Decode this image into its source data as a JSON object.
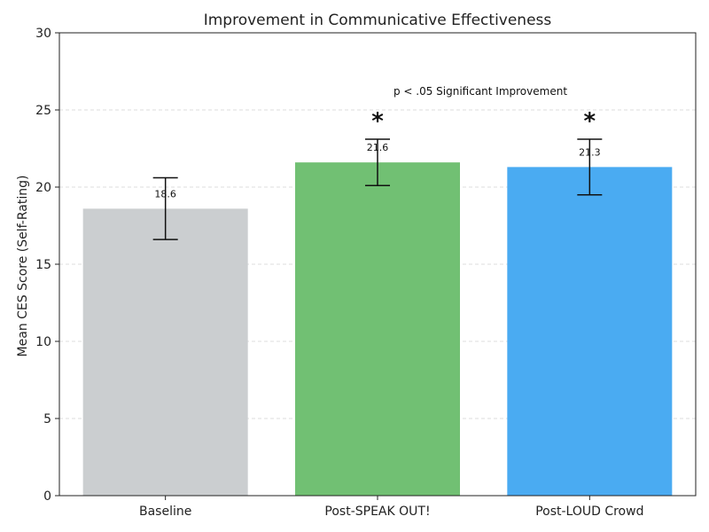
{
  "chart_data": {
    "type": "bar",
    "title": "Improvement in Communicative Effectiveness",
    "xlabel": "",
    "ylabel": "Mean CES Score (Self-Rating)",
    "ylim": [
      0,
      30
    ],
    "yticks": [
      0,
      5,
      10,
      15,
      20,
      25,
      30
    ],
    "grid": true,
    "categories": [
      "Baseline",
      "Post-SPEAK OUT!",
      "Post-LOUD Crowd"
    ],
    "values": [
      18.6,
      21.6,
      21.3
    ],
    "value_labels": [
      "18.6",
      "21.6",
      "21.3"
    ],
    "errors": [
      2.0,
      1.5,
      1.8
    ],
    "colors": [
      "#cbced0",
      "#71c073",
      "#4aabf2"
    ],
    "significance_markers": [
      "",
      "*",
      "*"
    ],
    "annotation": "p < .05 Significant Improvement"
  }
}
